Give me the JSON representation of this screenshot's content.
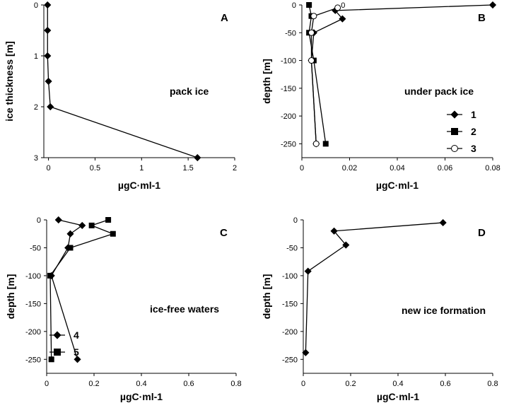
{
  "chart_data": [
    {
      "panel": "A",
      "type": "line",
      "annotation": "pack ice",
      "xlabel": "µgC·ml-1",
      "ylabel": "ice thickness [m]",
      "xlim": [
        -0.05,
        2
      ],
      "ylim": [
        0,
        3
      ],
      "y_inverted": true,
      "xticks": [
        0,
        0.5,
        1,
        1.5,
        2
      ],
      "xtick_labels": [
        "0",
        "0.5",
        "1",
        "1.5",
        "2"
      ],
      "yticks": [
        0,
        1,
        2,
        3
      ],
      "ytick_labels": [
        "0",
        "1",
        "2",
        "3"
      ],
      "series": [
        {
          "name": "",
          "marker": "diamond",
          "x": [
            -0.01,
            -0.01,
            -0.01,
            0.0,
            0.02,
            1.6
          ],
          "y": [
            0,
            0.5,
            1,
            1.5,
            2,
            3
          ]
        }
      ]
    },
    {
      "panel": "B",
      "type": "line",
      "annotation": "under pack ice",
      "xlabel": "µgC·ml-1",
      "ylabel": "depth [m]",
      "xlim": [
        0,
        0.08
      ],
      "ylim": [
        -275,
        0
      ],
      "xticks": [
        0,
        0.02,
        0.04,
        0.06,
        0.08
      ],
      "xtick_labels": [
        "0",
        "0.02",
        "0.04",
        "0.06",
        "0.08"
      ],
      "yticks": [
        0,
        -50,
        -100,
        -150,
        -200,
        -250
      ],
      "ytick_labels": [
        "0",
        "-50",
        "-100",
        "-150",
        "-200",
        "-250"
      ],
      "top_label": "0",
      "legend": {
        "position": "right",
        "entries": [
          {
            "label": "1",
            "marker": "diamond"
          },
          {
            "label": "2",
            "marker": "square"
          },
          {
            "label": "3",
            "marker": "circle"
          }
        ]
      },
      "series": [
        {
          "name": "1",
          "marker": "diamond",
          "x": [
            0.08,
            0.014,
            0.017,
            0.005,
            0.004,
            0.006
          ],
          "y": [
            0,
            -10,
            -25,
            -50,
            -100,
            -250
          ]
        },
        {
          "name": "2",
          "marker": "square",
          "x": [
            0.003,
            0.004,
            0.003,
            0.005,
            0.01
          ],
          "y": [
            0,
            -20,
            -50,
            -100,
            -250
          ]
        },
        {
          "name": "3",
          "marker": "circle",
          "x": [
            0.015,
            0.005,
            0.004,
            0.004,
            0.006
          ],
          "y": [
            -5,
            -20,
            -50,
            -100,
            -250
          ]
        }
      ]
    },
    {
      "panel": "C",
      "type": "line",
      "annotation": "ice-free waters",
      "xlabel": "µgC·ml-1",
      "ylabel": "depth [m]",
      "xlim": [
        0,
        0.8
      ],
      "ylim": [
        -275,
        0
      ],
      "xticks": [
        0,
        0.2,
        0.4,
        0.6,
        0.8
      ],
      "xtick_labels": [
        "0",
        "0.2",
        "0.4",
        "0.6",
        "0.8"
      ],
      "yticks": [
        0,
        -50,
        -100,
        -150,
        -200,
        -250
      ],
      "ytick_labels": [
        "0",
        "-50",
        "-100",
        "-150",
        "-200",
        "-250"
      ],
      "legend": {
        "position": "lower-right",
        "entries": [
          {
            "label": "4",
            "marker": "diamond"
          },
          {
            "label": "5",
            "marker": "square"
          }
        ]
      },
      "series": [
        {
          "name": "4",
          "marker": "diamond",
          "x": [
            0.05,
            0.15,
            0.1,
            0.09,
            0.02,
            0.13
          ],
          "y": [
            0,
            -10,
            -25,
            -50,
            -100,
            -250
          ]
        },
        {
          "name": "5",
          "marker": "square",
          "x": [
            0.26,
            0.19,
            0.28,
            0.1,
            0.015,
            0.02
          ],
          "y": [
            0,
            -10,
            -25,
            -50,
            -100,
            -250
          ]
        }
      ]
    },
    {
      "panel": "D",
      "type": "line",
      "annotation": "new ice formation",
      "xlabel": "µgC·ml-1",
      "ylabel": "depth [m]",
      "xlim": [
        0,
        0.8
      ],
      "ylim": [
        -275,
        0
      ],
      "xticks": [
        0,
        0.2,
        0.4,
        0.6,
        0.8
      ],
      "xtick_labels": [
        "0",
        "0.2",
        "0.4",
        "0.6",
        "0.8"
      ],
      "yticks": [
        0,
        -50,
        -100,
        -150,
        -200,
        -250
      ],
      "ytick_labels": [
        "0",
        "-50",
        "-100",
        "-150",
        "-200",
        "-250"
      ],
      "series": [
        {
          "name": "",
          "marker": "diamond",
          "x": [
            0.59,
            0.13,
            0.18,
            0.02,
            0.01
          ],
          "y": [
            -5,
            -20,
            -45,
            -92,
            -238
          ]
        }
      ]
    }
  ]
}
